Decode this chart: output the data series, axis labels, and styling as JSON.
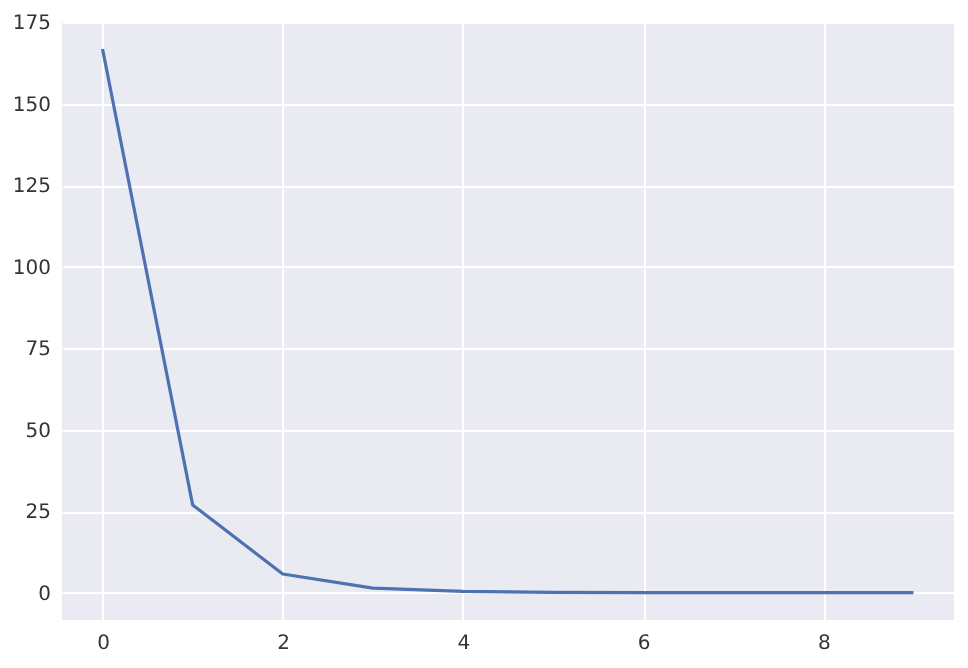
{
  "chart_data": {
    "type": "line",
    "x": [
      0,
      1,
      2,
      3,
      4,
      5,
      6,
      7,
      8,
      9
    ],
    "series": [
      {
        "color": "#4c72b0",
        "values": [
          166.7,
          26.9,
          5.7,
          1.4,
          0.4,
          0.1,
          0,
          0,
          0,
          0
        ]
      }
    ],
    "xlim": [
      -0.45,
      9.45
    ],
    "xticks": [
      0,
      2,
      4,
      6,
      8
    ],
    "ylim": [
      -8.4,
      175
    ],
    "yticks": [
      0,
      25,
      50,
      75,
      100,
      125,
      150,
      175
    ],
    "grid": true,
    "marker": "none",
    "line_style": "solid"
  }
}
